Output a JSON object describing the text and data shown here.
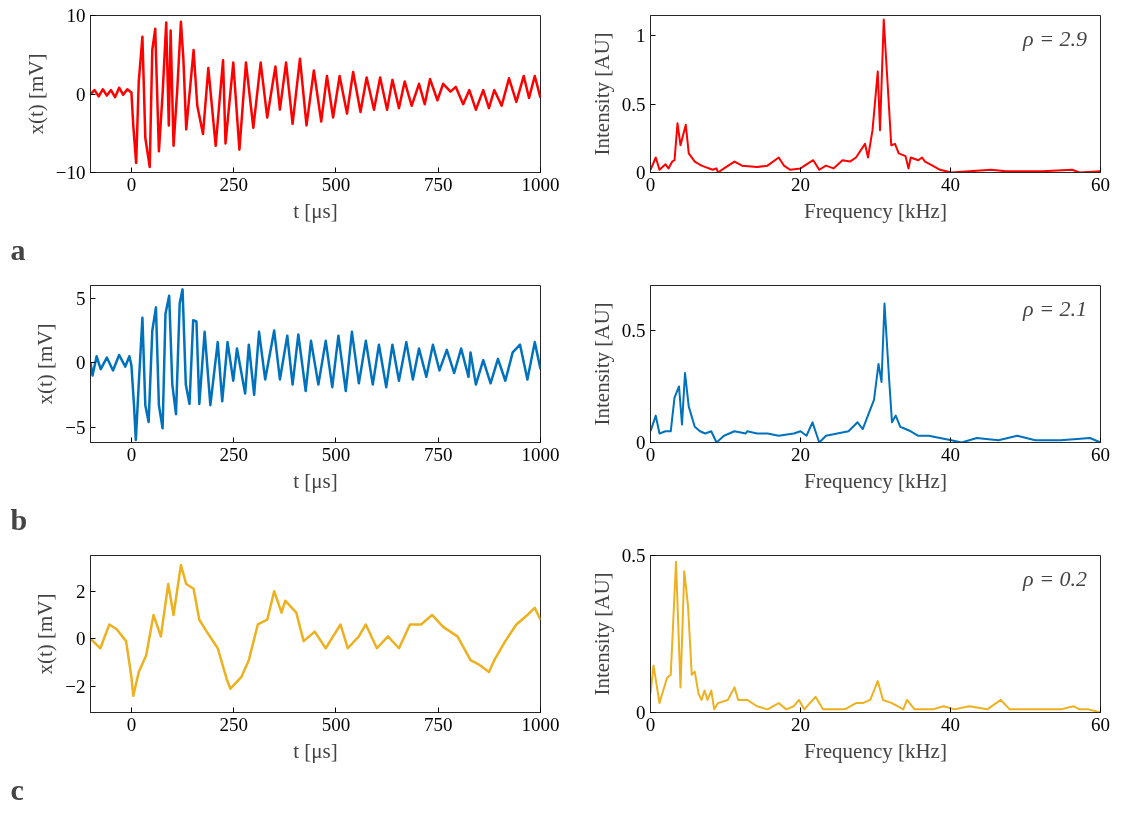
{
  "chart_data": [
    {
      "type": "line",
      "xlabel": "t [μs]",
      "ylabel": "x(t) [mV]",
      "annotations": [
        "a"
      ],
      "xlim": [
        -100,
        1000
      ],
      "ylim": [
        -10,
        10
      ],
      "xticks": [
        0,
        250,
        500,
        750,
        1000
      ],
      "yticks": [
        -10,
        0,
        10
      ],
      "x": [
        -100,
        -90,
        -80,
        -70,
        -60,
        -50,
        -40,
        -30,
        -20,
        -10,
        0,
        4.5,
        11.6,
        17.9,
        26.9,
        34,
        44.8,
        51,
        58.2,
        67.2,
        76.2,
        85.1,
        91.4,
        95.9,
        103,
        112,
        121,
        127,
        134,
        152,
        161,
        175,
        188,
        206,
        224,
        230,
        249,
        264,
        280,
        298,
        316,
        332,
        352,
        363,
        378,
        394,
        412,
        428,
        446,
        464,
        478,
        493,
        509,
        527,
        542,
        560,
        575,
        593,
        608,
        625,
        638,
        654,
        668,
        685,
        703,
        717,
        730,
        748,
        762,
        780,
        793,
        811,
        826,
        842,
        860,
        874,
        887,
        905,
        923,
        941,
        959,
        972,
        986,
        1000
      ],
      "series": [
        {
          "color": "#ff0000",
          "values": [
            0,
            0.5,
            -0.3,
            0.6,
            -0.2,
            0.5,
            -0.4,
            0.8,
            -0.1,
            0.6,
            0.2,
            -4.0,
            -8.8,
            1.5,
            7.3,
            -5.6,
            -9.3,
            5.6,
            8.3,
            -7.3,
            0,
            9.1,
            -4,
            8.1,
            -6.6,
            0.5,
            9.2,
            4.5,
            -4.5,
            5.6,
            -1.5,
            -5.1,
            3.3,
            -6.6,
            4.3,
            -6.3,
            4.0,
            -7.1,
            4.0,
            -4.3,
            4.0,
            -3.0,
            3.5,
            -2.0,
            4.0,
            -3.8,
            4.5,
            -4.0,
            3.0,
            -3.5,
            2.3,
            -3.0,
            2.3,
            -2.5,
            2.8,
            -2.3,
            2.1,
            -2.0,
            2.1,
            -2.0,
            1.8,
            -1.8,
            1.6,
            -1.5,
            1.3,
            -1.3,
            1.9,
            -0.8,
            1.3,
            0.3,
            0.9,
            -1.3,
            0.5,
            -2.0,
            0.5,
            -1.8,
            0.5,
            -1.5,
            2.0,
            -1.0,
            2.3,
            -0.5,
            2.3,
            -0.5
          ]
        }
      ]
    },
    {
      "type": "line",
      "xlabel": "Frequency [kHz]",
      "ylabel": "Intensity [AU]",
      "annotations": [
        "ρ = 2.9"
      ],
      "xlim": [
        0,
        60
      ],
      "ylim": [
        0,
        1.15
      ],
      "xticks": [
        0,
        20,
        40,
        60
      ],
      "yticks": [
        0,
        0.5,
        1
      ],
      "x": [
        0,
        0.7,
        1.2,
        2.0,
        2.4,
        2.9,
        3.2,
        3.6,
        4.0,
        4.7,
        5.1,
        5.9,
        6.8,
        8.3,
        8.8,
        9.0,
        9.8,
        11.2,
        12.2,
        14.2,
        15.6,
        17.1,
        17.8,
        18.6,
        20.0,
        20.8,
        21.7,
        22.5,
        23.4,
        24.4,
        25.6,
        26.6,
        27.4,
        28.6,
        29.0,
        29.6,
        30.3,
        30.6,
        31.1,
        31.7,
        32.1,
        32.6,
        33.1,
        34.0,
        34.4,
        34.7,
        35.7,
        36.2,
        36.6,
        37.6,
        38.6,
        40.1,
        42.5,
        45.4,
        47.4,
        49.8,
        52.3,
        56.2,
        57.2,
        60
      ],
      "series": [
        {
          "color": "#ff0000",
          "values": [
            0.02,
            0.11,
            0.02,
            0.06,
            0.03,
            0.08,
            0.09,
            0.36,
            0.2,
            0.35,
            0.14,
            0.08,
            0.05,
            0.02,
            0.03,
            0,
            0.03,
            0.08,
            0.05,
            0.04,
            0.05,
            0.11,
            0.05,
            0.02,
            0.03,
            0.06,
            0.09,
            0.02,
            0.05,
            0.03,
            0.09,
            0.08,
            0.11,
            0.21,
            0.11,
            0.31,
            0.74,
            0.31,
            1.12,
            0.57,
            0.2,
            0.21,
            0.14,
            0.12,
            0.03,
            0.11,
            0.09,
            0.11,
            0.08,
            0.05,
            0.02,
            0,
            0.01,
            0.02,
            0.01,
            0.01,
            0.01,
            0.02,
            0,
            0.01
          ]
        }
      ]
    },
    {
      "type": "line",
      "xlabel": "t [μs]",
      "ylabel": "x(t) [mV]",
      "annotations": [
        "b"
      ],
      "xlim": [
        -100,
        1000
      ],
      "ylim": [
        -6.2,
        6
      ],
      "xticks": [
        0,
        250,
        500,
        750,
        1000
      ],
      "yticks": [
        -5,
        0,
        5
      ],
      "x": [
        -100,
        -95,
        -85,
        -75,
        -60,
        -45,
        -30,
        -15,
        -5,
        0,
        6.3,
        10.8,
        17.9,
        26.9,
        34,
        42.1,
        51.1,
        60,
        67.2,
        76.2,
        83.3,
        92.3,
        100,
        109,
        118,
        125,
        133,
        142,
        151,
        159,
        166,
        179,
        193,
        211,
        222,
        235,
        249,
        258,
        278,
        287,
        300,
        312,
        327,
        349,
        363,
        381,
        394,
        408,
        426,
        439,
        457,
        475,
        491,
        506,
        524,
        539,
        556,
        573,
        590,
        605,
        623,
        638,
        654,
        672,
        688,
        703,
        721,
        737,
        753,
        771,
        789,
        806,
        824,
        829,
        842,
        860,
        878,
        896,
        914,
        932,
        950,
        968,
        986,
        1000
      ],
      "series": [
        {
          "color": "#0072bd",
          "values": [
            0,
            -1,
            0.5,
            -0.5,
            0.4,
            -0.6,
            0.6,
            -0.3,
            0.5,
            -0.2,
            -3.3,
            -6.0,
            -1.7,
            3.5,
            -3.3,
            -4.6,
            2.5,
            4.3,
            -3.3,
            -5.1,
            3.8,
            5.2,
            -1.7,
            -4.0,
            4.6,
            5.7,
            -1.7,
            -3.2,
            3.3,
            3.2,
            -3.2,
            2.4,
            -3.3,
            1.6,
            -3.0,
            1.6,
            -1.4,
            1.1,
            -2.4,
            1.4,
            -2.5,
            2.4,
            -1.3,
            2.5,
            -1.3,
            2.1,
            -1.7,
            2.2,
            -2.2,
            1.7,
            -1.7,
            1.7,
            -1.9,
            2.1,
            -2.2,
            2.4,
            -1.6,
            1.7,
            -1.7,
            1.4,
            -1.9,
            1.4,
            -1.4,
            1.6,
            -1.3,
            1.1,
            -1.1,
            1.4,
            -0.6,
            1.0,
            -0.8,
            1.1,
            -1.1,
            0.8,
            -1.7,
            0.2,
            -1.6,
            0.3,
            -1.4,
            0.8,
            1.4,
            -1.3,
            1.6,
            -0.5
          ]
        }
      ]
    },
    {
      "type": "line",
      "xlabel": "Frequency [kHz]",
      "ylabel": "Intensity [AU]",
      "annotations": [
        "ρ = 2.1"
      ],
      "xlim": [
        0,
        60
      ],
      "ylim": [
        0,
        0.7
      ],
      "xticks": [
        0,
        20,
        40,
        60
      ],
      "yticks": [
        0,
        0.5
      ],
      "x": [
        0,
        0.7,
        1.2,
        2.0,
        2.7,
        3.2,
        3.8,
        4.2,
        4.6,
        5.1,
        5.9,
        6.6,
        7.3,
        8.1,
        8.8,
        9.8,
        11.2,
        12.7,
        12.9,
        14.2,
        15.6,
        17.1,
        19.1,
        20.0,
        20.8,
        21.6,
        22.5,
        23.4,
        24.9,
        26.4,
        27.6,
        28.3,
        29.1,
        29.8,
        30.4,
        30.8,
        31.2,
        31.8,
        32.2,
        32.7,
        33.3,
        34.0,
        34.7,
        35.7,
        37.1,
        38.6,
        40.1,
        41.5,
        43.5,
        46.4,
        48.9,
        51.3,
        54.7,
        58.6,
        60
      ],
      "series": [
        {
          "color": "#0072bd",
          "values": [
            0.05,
            0.12,
            0.04,
            0.05,
            0.05,
            0.2,
            0.25,
            0.08,
            0.31,
            0.16,
            0.07,
            0.05,
            0.04,
            0.05,
            0,
            0.03,
            0.05,
            0.04,
            0.05,
            0.04,
            0.04,
            0.03,
            0.04,
            0.05,
            0.03,
            0.09,
            0,
            0.03,
            0.04,
            0.05,
            0.09,
            0.06,
            0.13,
            0.19,
            0.35,
            0.27,
            0.62,
            0.29,
            0.09,
            0.12,
            0.07,
            0.06,
            0.05,
            0.03,
            0.03,
            0.02,
            0.01,
            0,
            0.02,
            0.01,
            0.03,
            0.01,
            0.01,
            0.02,
            0
          ]
        }
      ]
    },
    {
      "type": "line",
      "xlabel": "t [μs]",
      "ylabel": "x(t) [mV]",
      "annotations": [
        "c"
      ],
      "xlim": [
        -100,
        1000
      ],
      "ylim": [
        -3.1,
        3.5
      ],
      "xticks": [
        0,
        250,
        500,
        750,
        1000
      ],
      "yticks": [
        -2,
        0,
        2
      ],
      "x": [
        -100,
        -76,
        -54,
        -36,
        -13,
        0,
        4.5,
        18,
        36,
        54,
        72,
        90,
        103,
        121,
        134,
        152,
        166,
        184,
        211,
        233,
        242,
        269,
        287,
        309,
        332,
        349,
        367,
        376,
        403,
        421,
        448,
        475,
        493,
        511,
        529,
        556,
        573,
        600,
        627,
        654,
        681,
        708,
        735,
        762,
        797,
        829,
        851,
        874,
        887,
        914,
        941,
        968,
        986,
        1000
      ],
      "series": [
        {
          "color": "#edb120",
          "values": [
            0.0,
            -0.4,
            0.6,
            0.4,
            -0.1,
            -1.6,
            -2.4,
            -1.4,
            -0.7,
            1.0,
            0.1,
            2.3,
            1.0,
            3.1,
            2.3,
            2.1,
            0.8,
            0.3,
            -0.4,
            -1.7,
            -2.1,
            -1.6,
            -0.9,
            0.6,
            0.8,
            2.0,
            1.1,
            1.6,
            1.1,
            -0.1,
            0.3,
            -0.4,
            0.1,
            0.6,
            -0.4,
            0.1,
            0.6,
            -0.4,
            0.1,
            -0.4,
            0.6,
            0.6,
            1.0,
            0.5,
            0.1,
            -0.9,
            -1.1,
            -1.4,
            -0.9,
            -0.1,
            0.6,
            1.0,
            1.3,
            0.8
          ]
        }
      ]
    },
    {
      "type": "line",
      "xlabel": "Frequency [kHz]",
      "ylabel": "Intensity [AU]",
      "annotations": [
        "ρ = 0.2"
      ],
      "xlim": [
        0,
        60
      ],
      "ylim": [
        0,
        0.5
      ],
      "xticks": [
        0,
        20,
        40,
        60
      ],
      "yticks": [
        0,
        0.5
      ],
      "x": [
        0,
        0.4,
        1.2,
        2.2,
        2.7,
        3.4,
        4.0,
        4.5,
        5.0,
        5.5,
        5.9,
        6.4,
        6.8,
        7.2,
        7.6,
        8.1,
        8.5,
        9.0,
        10.3,
        11.2,
        11.7,
        12.9,
        14.2,
        15.6,
        17.1,
        18.1,
        19.1,
        19.8,
        20.5,
        22.0,
        23.0,
        24.4,
        25.9,
        27.4,
        28.3,
        29.3,
        30.3,
        31.0,
        32.2,
        33.7,
        34.2,
        35.2,
        36.6,
        37.6,
        39.1,
        40.5,
        42.5,
        44.9,
        46.7,
        47.9,
        50.3,
        52.3,
        54.7,
        56.4,
        57.2,
        58.4,
        60
      ],
      "series": [
        {
          "color": "#edb120",
          "values": [
            0.06,
            0.15,
            0.03,
            0.11,
            0.12,
            0.48,
            0.08,
            0.45,
            0.34,
            0.12,
            0.13,
            0.06,
            0.04,
            0.07,
            0.04,
            0.07,
            0.01,
            0.03,
            0.04,
            0.08,
            0.04,
            0.04,
            0.02,
            0.01,
            0.03,
            0.01,
            0.02,
            0.04,
            0.01,
            0.05,
            0.01,
            0.01,
            0.01,
            0.03,
            0.03,
            0.04,
            0.1,
            0.04,
            0.03,
            0.01,
            0.04,
            0.01,
            0.01,
            0.01,
            0.02,
            0.01,
            0.02,
            0.01,
            0.04,
            0.01,
            0.01,
            0.01,
            0.01,
            0.02,
            0.01,
            0.01,
            0
          ]
        }
      ]
    }
  ]
}
